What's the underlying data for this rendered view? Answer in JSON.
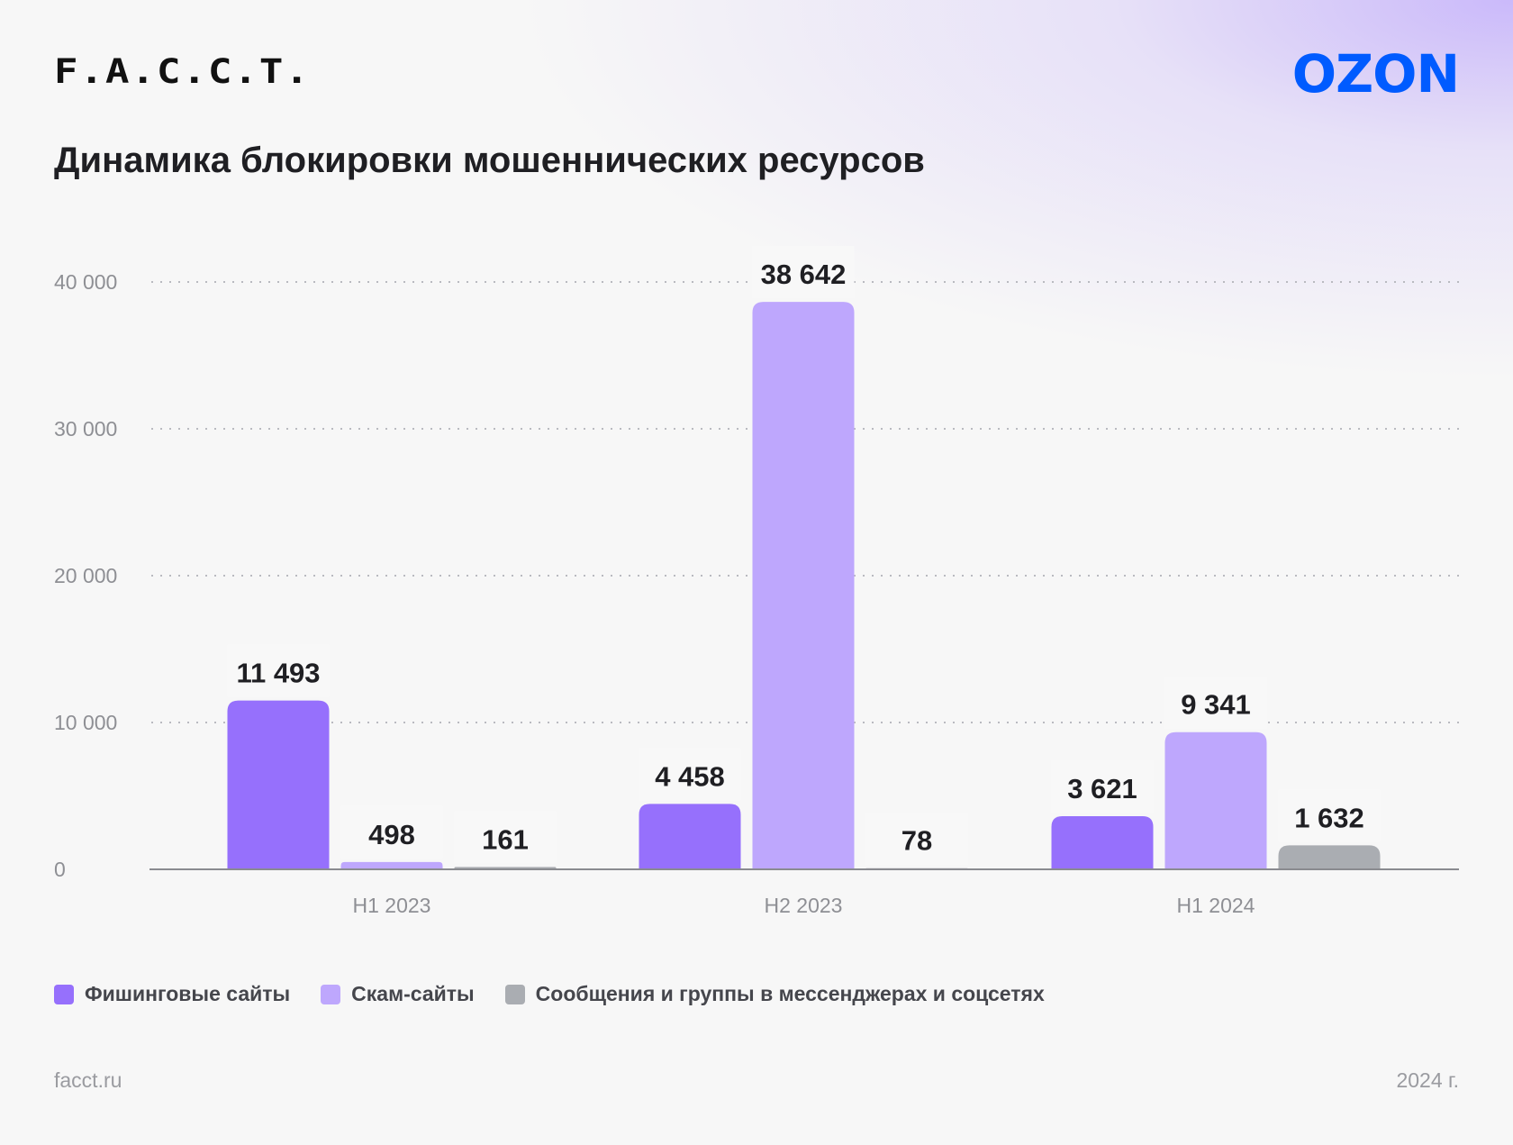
{
  "brand": {
    "left_logo": "F.A.C.C.T.",
    "right_logo": "OZON"
  },
  "title": "Динамика блокировки мошеннических ресурсов",
  "chart_data": {
    "type": "bar",
    "title": "Динамика блокировки мошеннических ресурсов",
    "categories": [
      "H1 2023",
      "H2 2023",
      "H1 2024"
    ],
    "series": [
      {
        "name": "Фишинговые сайты",
        "values": [
          11493,
          4458,
          3621
        ],
        "labels": [
          "11 493",
          "4 458",
          "3 621"
        ],
        "color": "#9670fc"
      },
      {
        "name": "Скам-сайты",
        "values": [
          498,
          38642,
          9341
        ],
        "labels": [
          "498",
          "38 642",
          "9 341"
        ],
        "color": "#bea7fd"
      },
      {
        "name": "Сообщения и группы в мессенджерах и соцсетях",
        "values": [
          161,
          78,
          1632
        ],
        "labels": [
          "161",
          "78",
          "1 632"
        ],
        "color": "#aaadb2"
      }
    ],
    "yticks": [
      "0",
      "10 000",
      "20 000",
      "30 000",
      "40 000"
    ],
    "ytick_values": [
      0,
      10000,
      20000,
      30000,
      40000
    ],
    "ylim": [
      0,
      40000
    ],
    "grid": true,
    "legend": "bottom-left",
    "xlabel": "",
    "ylabel": ""
  },
  "footer": {
    "site": "facct.ru",
    "year": "2024 г."
  }
}
